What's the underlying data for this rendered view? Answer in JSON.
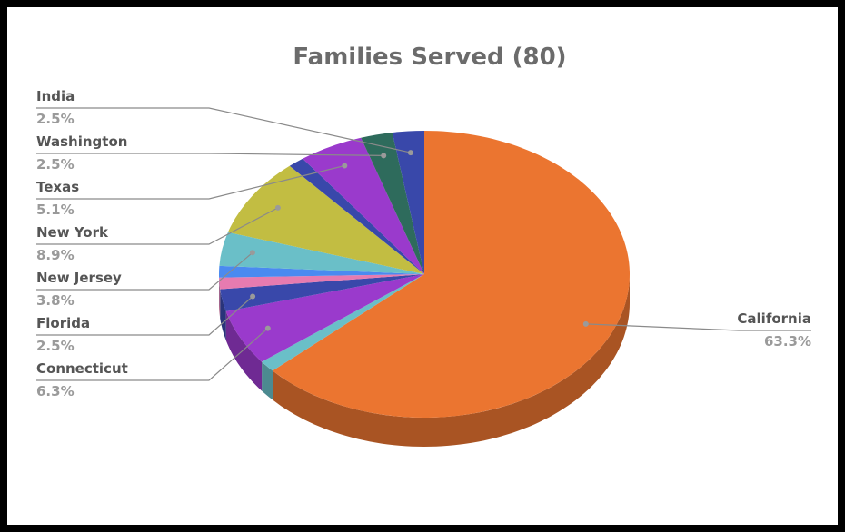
{
  "chart_data": {
    "type": "pie",
    "title": "Families Served (80)",
    "slices": [
      {
        "label": "California",
        "value": 63.3,
        "display": "63.3%",
        "color": "#EB7530"
      },
      {
        "label": "",
        "value": 1.3,
        "display": "",
        "color": "#6ABFC8"
      },
      {
        "label": "Connecticut",
        "value": 6.3,
        "display": "6.3%",
        "color": "#9A3ACC"
      },
      {
        "label": "Florida",
        "value": 2.5,
        "display": "2.5%",
        "color": "#3948AA"
      },
      {
        "label": "",
        "value": 1.3,
        "display": "",
        "color": "#E67BB0"
      },
      {
        "label": "",
        "value": 1.3,
        "display": "",
        "color": "#4A8AF0"
      },
      {
        "label": "New Jersey",
        "value": 3.8,
        "display": "3.8%",
        "color": "#6ABFC8"
      },
      {
        "label": "New York",
        "value": 8.9,
        "display": "8.9%",
        "color": "#C2BD42"
      },
      {
        "label": "",
        "value": 1.3,
        "display": "",
        "color": "#3948AA"
      },
      {
        "label": "Texas",
        "value": 5.1,
        "display": "5.1%",
        "color": "#9A3ACC"
      },
      {
        "label": "Washington",
        "value": 2.5,
        "display": "2.5%",
        "color": "#2E6B5C"
      },
      {
        "label": "India",
        "value": 2.5,
        "display": "2.5%",
        "color": "#3948AA"
      }
    ],
    "legend": "callout-labels"
  }
}
